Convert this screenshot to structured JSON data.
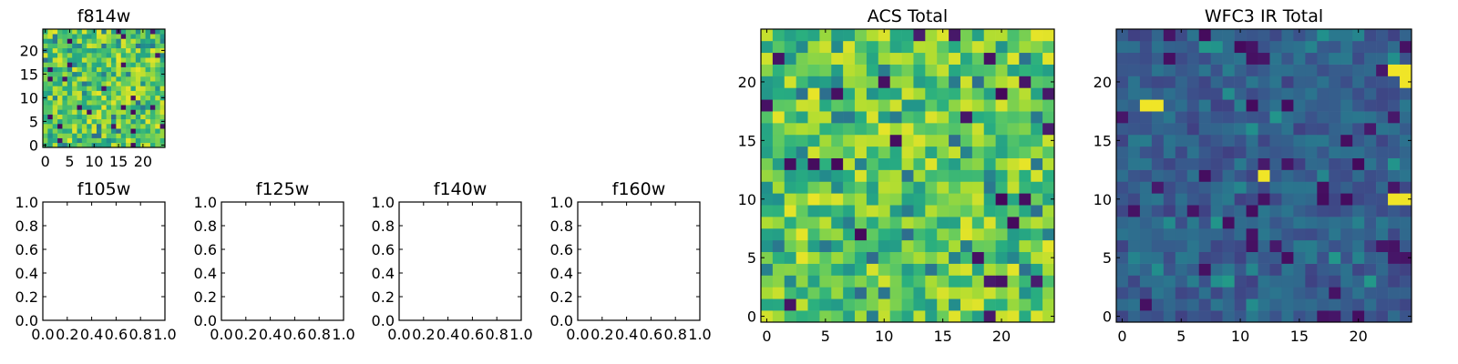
{
  "chart_data": [
    {
      "type": "heatmap",
      "title": "f814w",
      "x_ticks": [
        0,
        5,
        10,
        15,
        20
      ],
      "y_ticks": [
        0,
        5,
        10,
        15,
        20
      ],
      "grid_size": [
        25,
        25
      ],
      "xlim": [
        -0.5,
        24.5
      ],
      "ylim": [
        -0.5,
        24.5
      ],
      "colormap": "viridis",
      "value_range": [
        0,
        1
      ],
      "values": "random 25x25 field, mostly high values (green-yellow) with sparse low (dark) pixels"
    },
    {
      "type": "scatter",
      "title": "f105w",
      "xlim": [
        0.0,
        1.0
      ],
      "ylim": [
        0.0,
        1.0
      ],
      "x_tick_labels": [
        "0.0",
        "0.2",
        "0.4",
        "0.6",
        "0.8",
        "1.0"
      ],
      "y_tick_labels": [
        "0.0",
        "0.2",
        "0.4",
        "0.6",
        "0.8",
        "1.0"
      ],
      "values": []
    },
    {
      "type": "scatter",
      "title": "f125w",
      "xlim": [
        0.0,
        1.0
      ],
      "ylim": [
        0.0,
        1.0
      ],
      "x_tick_labels": [
        "0.0",
        "0.2",
        "0.4",
        "0.6",
        "0.8",
        "1.0"
      ],
      "y_tick_labels": [
        "0.0",
        "0.2",
        "0.4",
        "0.6",
        "0.8",
        "1.0"
      ],
      "values": []
    },
    {
      "type": "scatter",
      "title": "f140w",
      "xlim": [
        0.0,
        1.0
      ],
      "ylim": [
        0.0,
        1.0
      ],
      "x_tick_labels": [
        "0.0",
        "0.2",
        "0.4",
        "0.6",
        "0.8",
        "1.0"
      ],
      "y_tick_labels": [
        "0.0",
        "0.2",
        "0.4",
        "0.6",
        "0.8",
        "1.0"
      ],
      "values": []
    },
    {
      "type": "scatter",
      "title": "f160w",
      "xlim": [
        0.0,
        1.0
      ],
      "ylim": [
        0.0,
        1.0
      ],
      "x_tick_labels": [
        "0.0",
        "0.2",
        "0.4",
        "0.6",
        "0.8",
        "1.0"
      ],
      "y_tick_labels": [
        "0.0",
        "0.2",
        "0.4",
        "0.6",
        "0.8",
        "1.0"
      ],
      "values": []
    },
    {
      "type": "heatmap",
      "title": "ACS Total",
      "x_ticks": [
        0,
        5,
        10,
        15,
        20
      ],
      "y_ticks": [
        0,
        5,
        10,
        15,
        20
      ],
      "grid_size": [
        25,
        25
      ],
      "xlim": [
        -0.5,
        24.5
      ],
      "ylim": [
        -0.5,
        24.5
      ],
      "colormap": "viridis",
      "value_range": [
        0,
        1
      ],
      "values": "random 25x25 field, mostly high values (green-yellow) with sparse low (dark) pixels"
    },
    {
      "type": "heatmap",
      "title": "WFC3 IR Total",
      "x_ticks": [
        0,
        5,
        10,
        15,
        20
      ],
      "y_ticks": [
        0,
        5,
        10,
        15,
        20
      ],
      "grid_size": [
        25,
        25
      ],
      "xlim": [
        -0.5,
        24.5
      ],
      "ylim": [
        -0.5,
        24.5
      ],
      "colormap": "viridis",
      "value_range": [
        0,
        1
      ],
      "values": "random 25x25 field, mostly low-mid values (dark blue) with a few bright (yellow) pixels",
      "bright_pixels": [
        [
          2,
          18
        ],
        [
          3,
          18
        ],
        [
          23,
          21
        ],
        [
          24,
          21
        ],
        [
          24,
          20
        ],
        [
          12,
          12
        ],
        [
          23,
          10
        ],
        [
          24,
          10
        ]
      ]
    }
  ]
}
